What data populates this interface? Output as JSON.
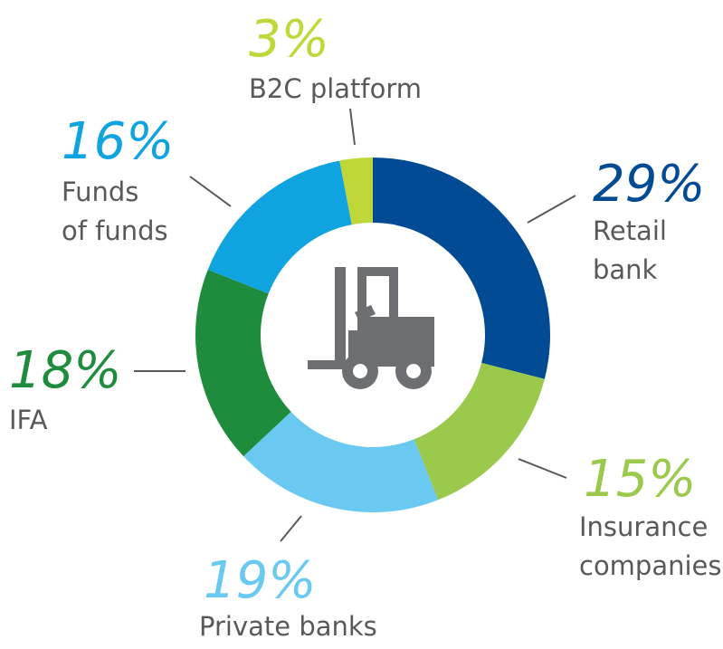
{
  "chart_data": {
    "type": "donut",
    "categories": [
      "Retail\nbank",
      "Insurance\ncompanies",
      "Private banks",
      "IFA",
      "Funds\nof funds",
      "B2C platform"
    ],
    "values": [
      29,
      15,
      19,
      18,
      16,
      3
    ],
    "value_labels": [
      "29%",
      "15%",
      "19%",
      "18%",
      "16%",
      "3%"
    ],
    "colors": [
      "#004b93",
      "#9bc94b",
      "#69c9f0",
      "#1e8c3c",
      "#0fa3e0",
      "#c0d73a"
    ]
  }
}
